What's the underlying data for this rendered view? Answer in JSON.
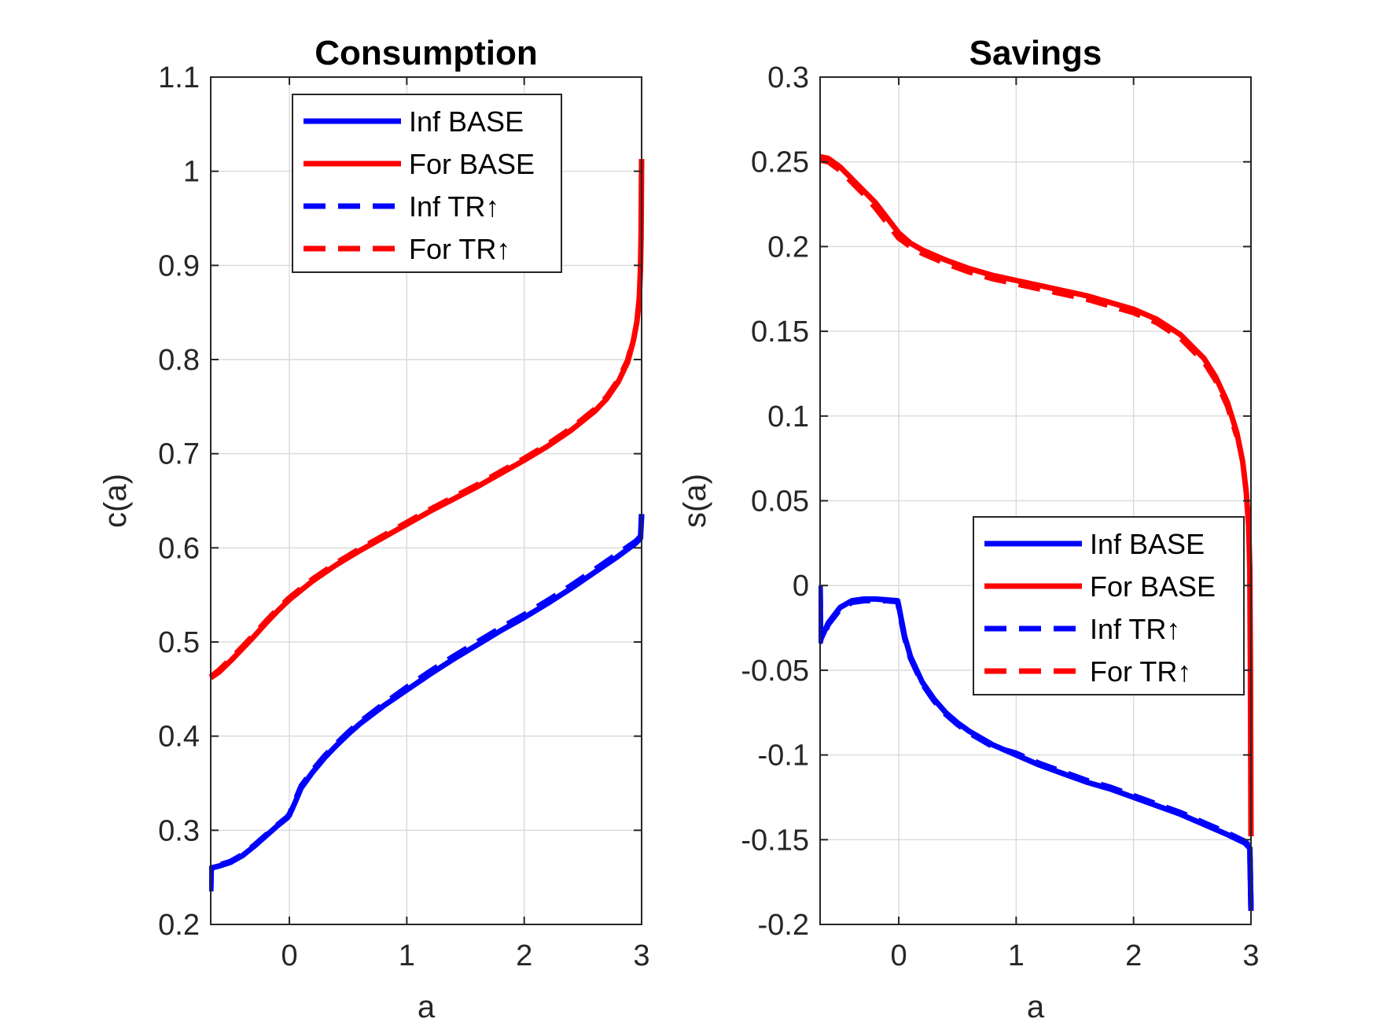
{
  "chart_data": [
    {
      "type": "line",
      "title": "Consumption",
      "xlabel": "a",
      "ylabel": "c(a)",
      "xlim": [
        -0.67,
        3.0
      ],
      "ylim": [
        0.2,
        1.1
      ],
      "xticks": [
        "0",
        "1",
        "2",
        "3"
      ],
      "xtick_values": [
        0,
        1,
        2,
        3
      ],
      "yticks": [
        "0.2",
        "0.3",
        "0.4",
        "0.5",
        "0.6",
        "0.7",
        "0.8",
        "0.9",
        "1",
        "1.1"
      ],
      "ytick_values": [
        0.2,
        0.3,
        0.4,
        0.5,
        0.6,
        0.7,
        0.8,
        0.9,
        1.0,
        1.1
      ],
      "grid": true,
      "legend_position": "top-center",
      "series": [
        {
          "name": "Inf BASE",
          "color": "#0000ff",
          "style": "solid",
          "points": [
            [
              -0.67,
              0.235
            ],
            [
              -0.665,
              0.26
            ],
            [
              -0.6,
              0.262
            ],
            [
              -0.5,
              0.266
            ],
            [
              -0.4,
              0.273
            ],
            [
              -0.3,
              0.283
            ],
            [
              -0.2,
              0.294
            ],
            [
              -0.1,
              0.305
            ],
            [
              -0.02,
              0.313
            ],
            [
              0.0,
              0.316
            ],
            [
              0.05,
              0.33
            ],
            [
              0.1,
              0.345
            ],
            [
              0.2,
              0.362
            ],
            [
              0.3,
              0.377
            ],
            [
              0.4,
              0.39
            ],
            [
              0.5,
              0.402
            ],
            [
              0.6,
              0.413
            ],
            [
              0.8,
              0.432
            ],
            [
              1.0,
              0.449
            ],
            [
              1.2,
              0.466
            ],
            [
              1.4,
              0.482
            ],
            [
              1.6,
              0.497
            ],
            [
              1.8,
              0.512
            ],
            [
              2.0,
              0.526
            ],
            [
              2.2,
              0.541
            ],
            [
              2.4,
              0.557
            ],
            [
              2.6,
              0.574
            ],
            [
              2.8,
              0.591
            ],
            [
              2.95,
              0.605
            ],
            [
              2.99,
              0.61
            ],
            [
              3.0,
              0.635
            ]
          ]
        },
        {
          "name": "For BASE",
          "color": "#ff0000",
          "style": "solid",
          "points": [
            [
              -0.67,
              0.462
            ],
            [
              -0.6,
              0.468
            ],
            [
              -0.5,
              0.48
            ],
            [
              -0.4,
              0.493
            ],
            [
              -0.3,
              0.506
            ],
            [
              -0.2,
              0.52
            ],
            [
              -0.1,
              0.533
            ],
            [
              0.0,
              0.545
            ],
            [
              0.1,
              0.555
            ],
            [
              0.2,
              0.565
            ],
            [
              0.4,
              0.582
            ],
            [
              0.6,
              0.597
            ],
            [
              0.8,
              0.611
            ],
            [
              1.0,
              0.625
            ],
            [
              1.2,
              0.639
            ],
            [
              1.4,
              0.652
            ],
            [
              1.6,
              0.665
            ],
            [
              1.8,
              0.679
            ],
            [
              2.0,
              0.693
            ],
            [
              2.2,
              0.708
            ],
            [
              2.4,
              0.725
            ],
            [
              2.6,
              0.745
            ],
            [
              2.7,
              0.758
            ],
            [
              2.8,
              0.776
            ],
            [
              2.88,
              0.797
            ],
            [
              2.93,
              0.82
            ],
            [
              2.96,
              0.84
            ],
            [
              2.98,
              0.865
            ],
            [
              2.99,
              0.895
            ],
            [
              2.995,
              0.93
            ],
            [
              3.0,
              1.013
            ]
          ]
        },
        {
          "name": "Inf TR↑",
          "color": "#0000ff",
          "style": "dashed",
          "points": [
            [
              -0.67,
              0.235
            ],
            [
              -0.665,
              0.261
            ],
            [
              -0.6,
              0.263
            ],
            [
              -0.5,
              0.267
            ],
            [
              -0.4,
              0.274
            ],
            [
              -0.3,
              0.284
            ],
            [
              -0.2,
              0.295
            ],
            [
              -0.1,
              0.306
            ],
            [
              -0.02,
              0.314
            ],
            [
              0.0,
              0.317
            ],
            [
              0.05,
              0.332
            ],
            [
              0.1,
              0.347
            ],
            [
              0.2,
              0.364
            ],
            [
              0.3,
              0.379
            ],
            [
              0.4,
              0.392
            ],
            [
              0.5,
              0.404
            ],
            [
              0.6,
              0.415
            ],
            [
              0.8,
              0.434
            ],
            [
              1.0,
              0.452
            ],
            [
              1.2,
              0.469
            ],
            [
              1.4,
              0.485
            ],
            [
              1.6,
              0.5
            ],
            [
              1.8,
              0.515
            ],
            [
              2.0,
              0.529
            ],
            [
              2.2,
              0.544
            ],
            [
              2.4,
              0.56
            ],
            [
              2.6,
              0.577
            ],
            [
              2.8,
              0.594
            ],
            [
              2.95,
              0.607
            ],
            [
              2.99,
              0.612
            ],
            [
              3.0,
              0.636
            ]
          ]
        },
        {
          "name": "For TR↑",
          "color": "#ff0000",
          "style": "dashed",
          "points": [
            [
              -0.67,
              0.463
            ],
            [
              -0.6,
              0.47
            ],
            [
              -0.5,
              0.482
            ],
            [
              -0.4,
              0.495
            ],
            [
              -0.3,
              0.508
            ],
            [
              -0.2,
              0.522
            ],
            [
              -0.1,
              0.535
            ],
            [
              0.0,
              0.547
            ],
            [
              0.1,
              0.557
            ],
            [
              0.2,
              0.567
            ],
            [
              0.4,
              0.584
            ],
            [
              0.6,
              0.599
            ],
            [
              0.8,
              0.613
            ],
            [
              1.0,
              0.627
            ],
            [
              1.2,
              0.641
            ],
            [
              1.4,
              0.654
            ],
            [
              1.6,
              0.667
            ],
            [
              1.8,
              0.681
            ],
            [
              2.0,
              0.695
            ],
            [
              2.2,
              0.71
            ],
            [
              2.4,
              0.727
            ],
            [
              2.6,
              0.747
            ],
            [
              2.7,
              0.76
            ],
            [
              2.8,
              0.778
            ],
            [
              2.88,
              0.799
            ],
            [
              2.93,
              0.822
            ]
          ]
        }
      ]
    },
    {
      "type": "line",
      "title": "Savings",
      "xlabel": "a",
      "ylabel": "s(a)",
      "xlim": [
        -0.67,
        3.0
      ],
      "ylim": [
        -0.2,
        0.3
      ],
      "xticks": [
        "0",
        "1",
        "2",
        "3"
      ],
      "xtick_values": [
        0,
        1,
        2,
        3
      ],
      "yticks": [
        "-0.2",
        "-0.15",
        "-0.1",
        "-0.05",
        "0",
        "0.05",
        "0.1",
        "0.15",
        "0.2",
        "0.25",
        "0.3"
      ],
      "ytick_values": [
        -0.2,
        -0.15,
        -0.1,
        -0.05,
        0,
        0.05,
        0.1,
        0.15,
        0.2,
        0.25,
        0.3
      ],
      "grid": true,
      "legend_position": "lower-right",
      "series": [
        {
          "name": "Inf BASE",
          "color": "#0000ff",
          "style": "solid",
          "points": [
            [
              -0.67,
              0.0
            ],
            [
              -0.665,
              -0.032
            ],
            [
              -0.6,
              -0.022
            ],
            [
              -0.5,
              -0.013
            ],
            [
              -0.4,
              -0.009
            ],
            [
              -0.3,
              -0.008
            ],
            [
              -0.2,
              -0.008
            ],
            [
              -0.1,
              -0.0085
            ],
            [
              -0.01,
              -0.009
            ],
            [
              0.0,
              -0.012
            ],
            [
              0.05,
              -0.03
            ],
            [
              0.1,
              -0.042
            ],
            [
              0.2,
              -0.057
            ],
            [
              0.3,
              -0.067
            ],
            [
              0.4,
              -0.075
            ],
            [
              0.5,
              -0.081
            ],
            [
              0.6,
              -0.086
            ],
            [
              0.8,
              -0.094
            ],
            [
              1.0,
              -0.1
            ],
            [
              1.2,
              -0.106
            ],
            [
              1.4,
              -0.111
            ],
            [
              1.6,
              -0.116
            ],
            [
              1.8,
              -0.12
            ],
            [
              2.0,
              -0.125
            ],
            [
              2.2,
              -0.13
            ],
            [
              2.4,
              -0.135
            ],
            [
              2.6,
              -0.141
            ],
            [
              2.8,
              -0.147
            ],
            [
              2.95,
              -0.152
            ],
            [
              2.99,
              -0.155
            ],
            [
              3.0,
              -0.192
            ]
          ]
        },
        {
          "name": "For BASE",
          "color": "#ff0000",
          "style": "solid",
          "points": [
            [
              -0.67,
              0.253
            ],
            [
              -0.6,
              0.252
            ],
            [
              -0.5,
              0.247
            ],
            [
              -0.4,
              0.24
            ],
            [
              -0.3,
              0.233
            ],
            [
              -0.2,
              0.226
            ],
            [
              -0.1,
              0.217
            ],
            [
              0.0,
              0.208
            ],
            [
              0.1,
              0.202
            ],
            [
              0.2,
              0.198
            ],
            [
              0.4,
              0.192
            ],
            [
              0.6,
              0.187
            ],
            [
              0.8,
              0.183
            ],
            [
              1.0,
              0.18
            ],
            [
              1.2,
              0.177
            ],
            [
              1.4,
              0.174
            ],
            [
              1.6,
              0.171
            ],
            [
              1.8,
              0.167
            ],
            [
              2.0,
              0.163
            ],
            [
              2.2,
              0.157
            ],
            [
              2.4,
              0.148
            ],
            [
              2.6,
              0.134
            ],
            [
              2.7,
              0.123
            ],
            [
              2.8,
              0.108
            ],
            [
              2.88,
              0.09
            ],
            [
              2.93,
              0.073
            ],
            [
              2.96,
              0.055
            ],
            [
              2.98,
              0.035
            ],
            [
              2.99,
              0.01
            ],
            [
              2.995,
              -0.05
            ],
            [
              3.0,
              -0.148
            ]
          ]
        },
        {
          "name": "Inf TR↑",
          "color": "#0000ff",
          "style": "dashed",
          "points": [
            [
              -0.67,
              0.0
            ],
            [
              -0.665,
              -0.033
            ],
            [
              -0.6,
              -0.023
            ],
            [
              -0.5,
              -0.014
            ],
            [
              -0.4,
              -0.01
            ],
            [
              -0.3,
              -0.009
            ],
            [
              -0.2,
              -0.0088
            ],
            [
              -0.1,
              -0.009
            ],
            [
              -0.01,
              -0.0095
            ],
            [
              0.0,
              -0.013
            ],
            [
              0.05,
              -0.031
            ],
            [
              0.1,
              -0.043
            ],
            [
              0.2,
              -0.058
            ],
            [
              0.3,
              -0.068
            ],
            [
              0.4,
              -0.076
            ],
            [
              0.5,
              -0.082
            ],
            [
              0.6,
              -0.087
            ],
            [
              0.8,
              -0.095
            ],
            [
              1.0,
              -0.099
            ],
            [
              1.2,
              -0.105
            ],
            [
              1.4,
              -0.11
            ],
            [
              1.6,
              -0.115
            ],
            [
              1.8,
              -0.119
            ],
            [
              2.0,
              -0.124
            ],
            [
              2.2,
              -0.129
            ],
            [
              2.4,
              -0.134
            ],
            [
              2.6,
              -0.14
            ],
            [
              2.8,
              -0.146
            ],
            [
              2.95,
              -0.151
            ],
            [
              2.99,
              -0.154
            ],
            [
              3.0,
              -0.19
            ]
          ]
        },
        {
          "name": "For TR↑",
          "color": "#ff0000",
          "style": "dashed",
          "points": [
            [
              -0.67,
              0.251
            ],
            [
              -0.6,
              0.25
            ],
            [
              -0.5,
              0.245
            ],
            [
              -0.4,
              0.238
            ],
            [
              -0.3,
              0.231
            ],
            [
              -0.2,
              0.223
            ],
            [
              -0.1,
              0.214
            ],
            [
              0.0,
              0.205
            ],
            [
              0.1,
              0.2
            ],
            [
              0.2,
              0.196
            ],
            [
              0.4,
              0.19
            ],
            [
              0.6,
              0.185
            ],
            [
              0.8,
              0.181
            ],
            [
              1.0,
              0.178
            ],
            [
              1.2,
              0.175
            ],
            [
              1.4,
              0.172
            ],
            [
              1.6,
              0.169
            ],
            [
              1.8,
              0.165
            ],
            [
              2.0,
              0.161
            ],
            [
              2.2,
              0.155
            ],
            [
              2.4,
              0.146
            ],
            [
              2.6,
              0.132
            ],
            [
              2.7,
              0.121
            ],
            [
              2.8,
              0.106
            ],
            [
              2.88,
              0.088
            ]
          ]
        }
      ]
    }
  ]
}
